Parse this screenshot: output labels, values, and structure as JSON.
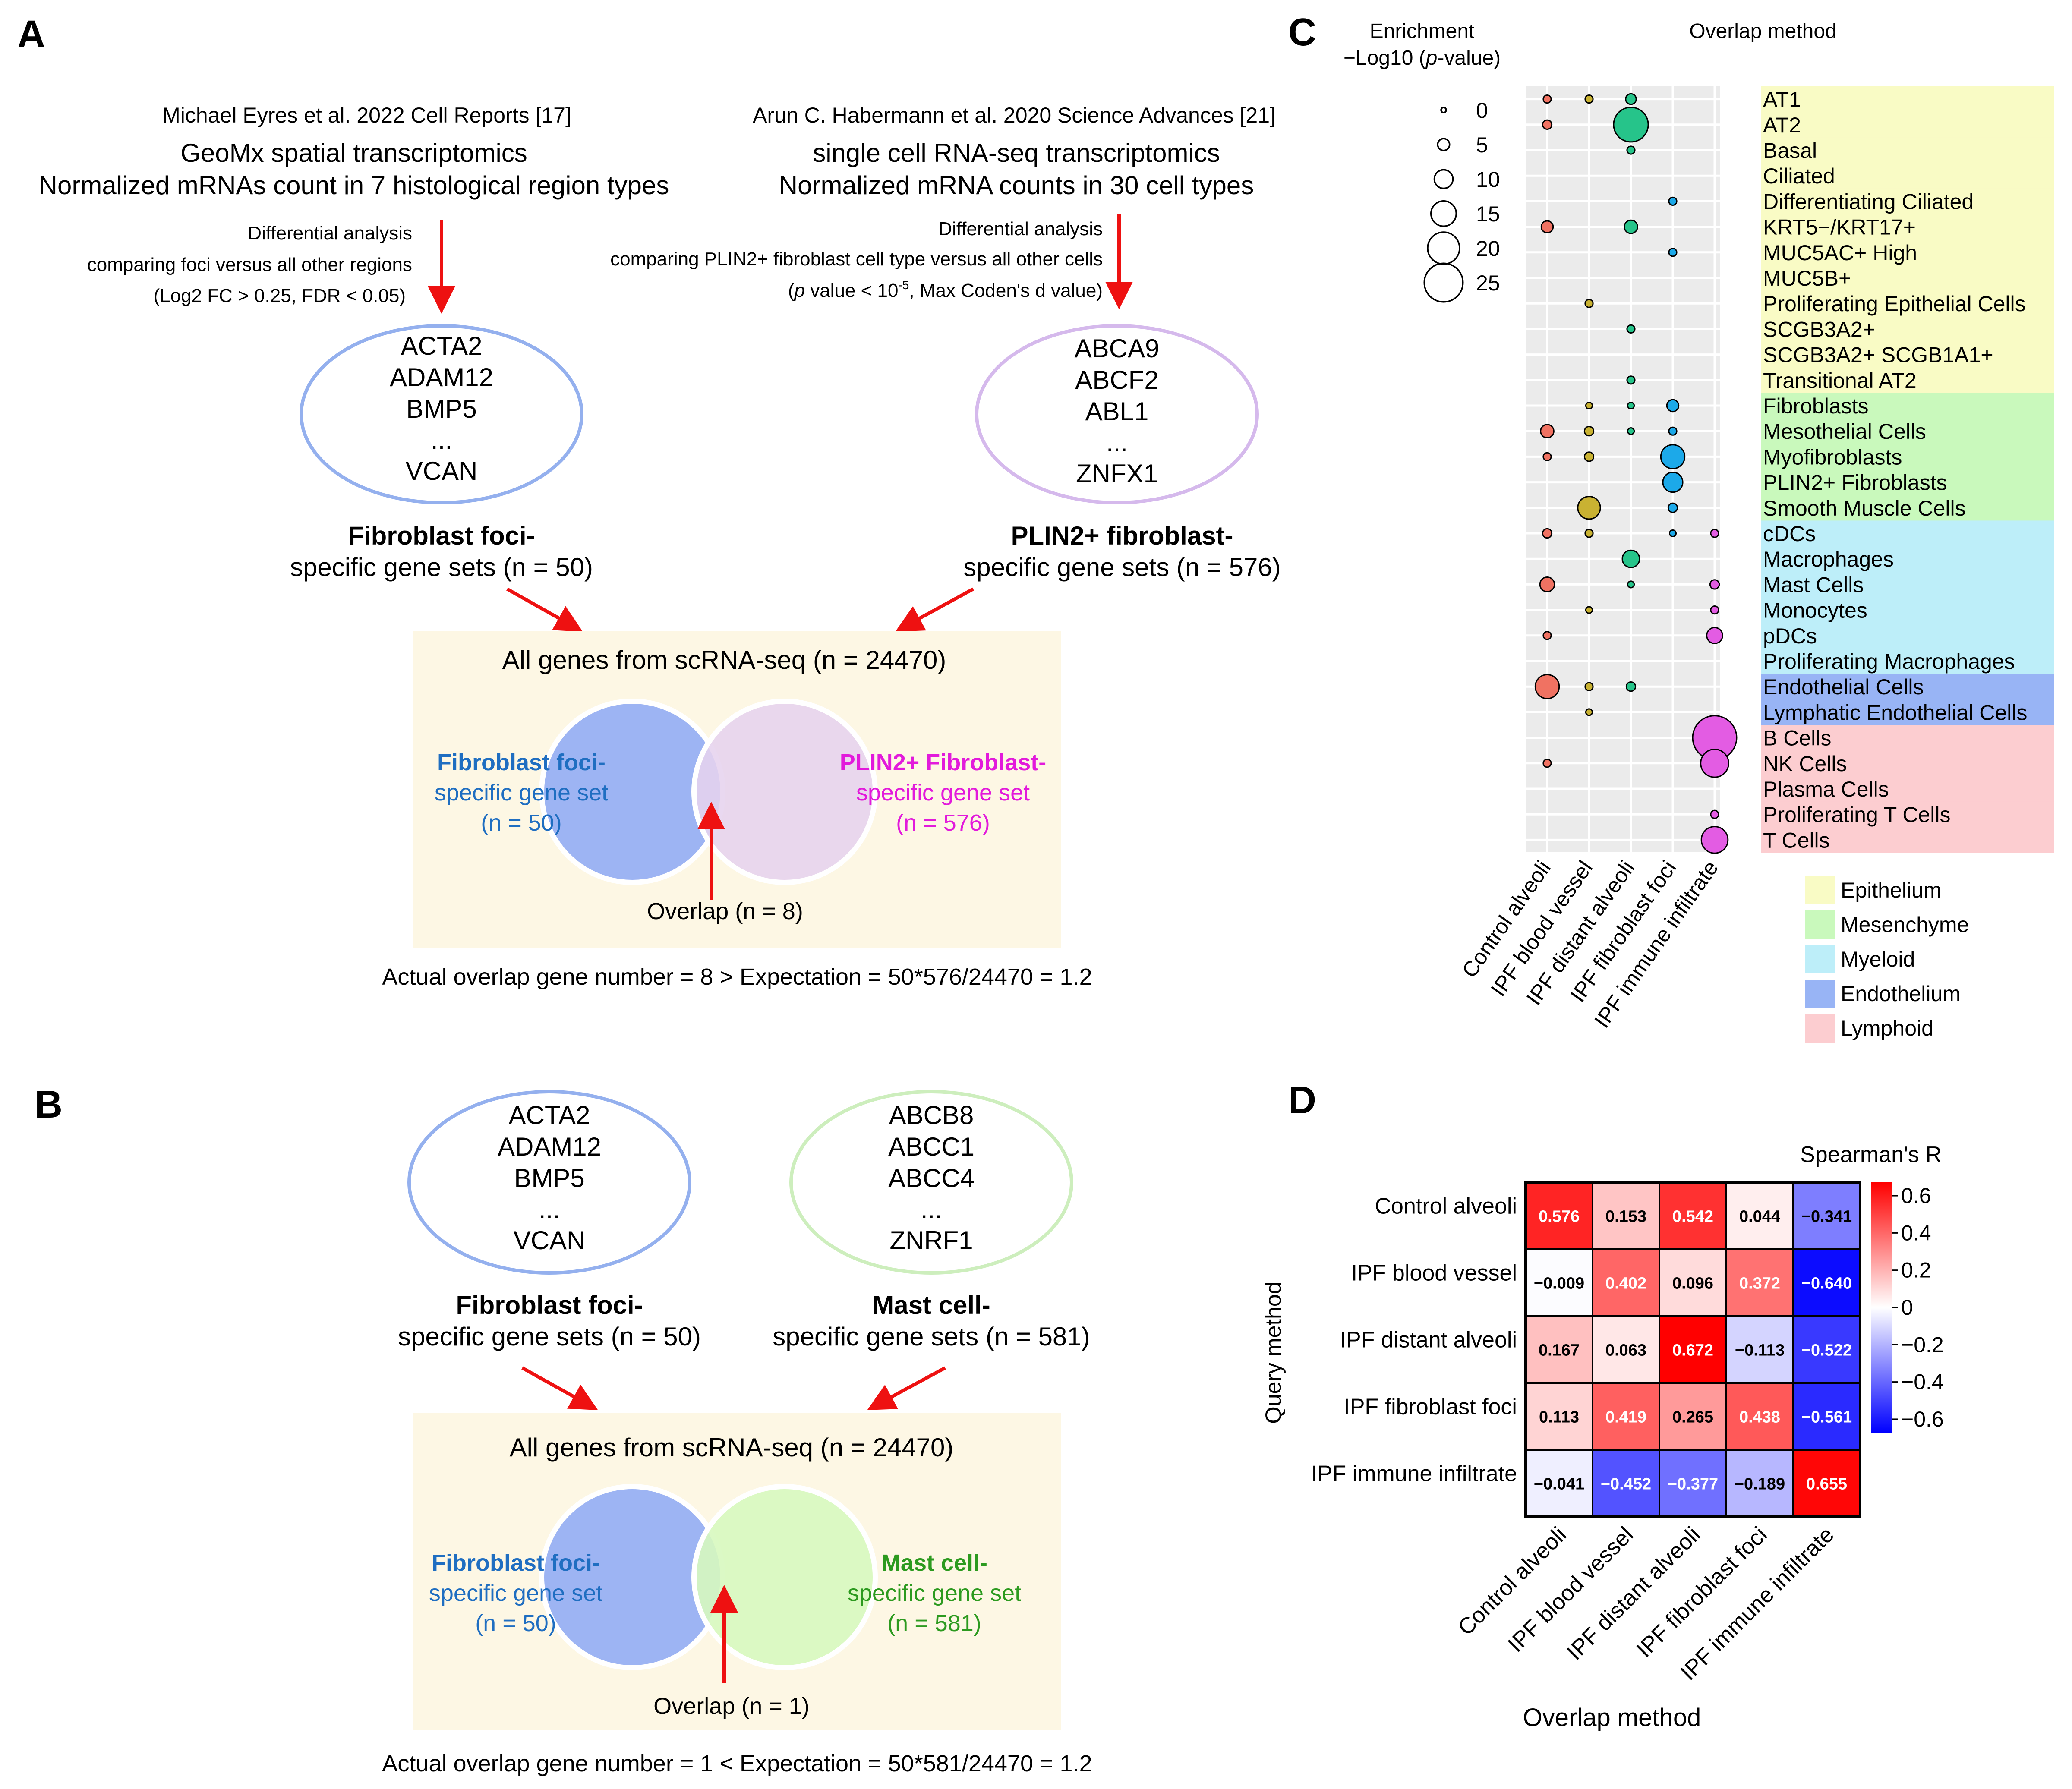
{
  "colors": {
    "arrow_red": "#ee1111",
    "venn_bg": "#fdf7e4",
    "foci_fill": "#9db4f3",
    "foci_outline": "#94b0ee",
    "plin2_fill": "#e6d3ee",
    "plin2_outline": "#d5b9ec",
    "mast_fill": "#d7f8bf",
    "mast_outline": "#cdeebd",
    "foci_text": "#1f6ec1",
    "plin2_text": "#e21adb",
    "mast_text": "#2c9a1f",
    "dot_grid_bg": "#ebebeb",
    "epithelium": "#f9fbc5",
    "mesenchyme": "#c9f9bc",
    "myeloid": "#bdeef9",
    "endothelium": "#98b4f5",
    "lymphoid": "#fccdd0"
  },
  "panel_a": {
    "letter": "A",
    "left_citation": "Michael Eyres et al. 2022 Cell Reports [17]",
    "left_method_1": "GeoMx spatial transcriptomics",
    "left_method_2": "Normalized mRNAs count in 7 histological region types",
    "left_diff_1": "Differential analysis",
    "left_diff_2": "comparing foci versus all other regions",
    "left_diff_3": "(Log2 FC > 0.25, FDR < 0.05)",
    "left_genes": [
      "ACTA2",
      "ADAM12",
      "BMP5",
      "...",
      "VCAN"
    ],
    "left_set_bold": "Fibroblast foci-",
    "left_set_sub": "specific gene sets (n = 50)",
    "right_citation": "Arun C. Habermann et al. 2020 Science Advances [21]",
    "right_method_1": "single cell RNA-seq transcriptomics",
    "right_method_2": "Normalized mRNA counts in 30 cell types",
    "right_diff_1": "Differential analysis",
    "right_diff_2": "comparing PLIN2+ fibroblast cell type versus all other cells",
    "right_diff_3_p": "p",
    "right_diff_3_a": " value < 10",
    "right_diff_3_exp": "-5",
    "right_diff_3_b": ", Max Coden's d value)",
    "right_genes": [
      "ABCA9",
      "ABCF2",
      "ABL1",
      "...",
      "ZNFX1"
    ],
    "right_set_bold": "PLIN2+ fibroblast-",
    "right_set_sub": "specific gene sets (n = 576)",
    "venn_title": "All genes from scRNA-seq (n = 24470)",
    "venn_left": [
      "Fibroblast foci-",
      "specific gene set",
      "(n = 50)"
    ],
    "venn_right": [
      "PLIN2+ Fibroblast-",
      "specific gene set",
      "(n = 576)"
    ],
    "overlap": "Overlap (n = 8)",
    "expectation": "Actual overlap gene number = 8 > Expectation = 50*576/24470 = 1.2"
  },
  "panel_b": {
    "letter": "B",
    "left_genes": [
      "ACTA2",
      "ADAM12",
      "BMP5",
      "...",
      "VCAN"
    ],
    "left_set_bold": "Fibroblast foci-",
    "left_set_sub": "specific gene sets (n = 50)",
    "right_genes": [
      "ABCB8",
      "ABCC1",
      "ABCC4",
      "...",
      "ZNRF1"
    ],
    "right_set_bold": "Mast cell-",
    "right_set_sub": "specific gene sets (n = 581)",
    "venn_title": "All genes from scRNA-seq (n = 24470)",
    "venn_left": [
      "Fibroblast foci-",
      "specific gene set",
      "(n = 50)"
    ],
    "venn_right": [
      "Mast cell-",
      "specific gene set",
      "(n = 581)"
    ],
    "overlap": "Overlap (n = 1)",
    "expectation": "Actual overlap gene number = 1 < Expectation = 50*581/24470 = 1.2"
  },
  "panel_c": {
    "letter": "C",
    "enrichment_title_1": "Enrichment",
    "enrichment_title_2a": "−Log10 (",
    "enrichment_title_2p": "p",
    "enrichment_title_2b": "-value)",
    "overlap_title": "Overlap method",
    "group_legend": [
      {
        "label": "Epithelium",
        "color": "#f9fbc5"
      },
      {
        "label": "Mesenchyme",
        "color": "#c9f9bc"
      },
      {
        "label": "Myeloid",
        "color": "#bdeef9"
      },
      {
        "label": "Endothelium",
        "color": "#98b4f5"
      },
      {
        "label": "Lymphoid",
        "color": "#fccdd0"
      }
    ]
  },
  "panel_d": {
    "letter": "D",
    "scale_title": "Spearman's R",
    "ylabel": "Query method",
    "xlabel": "Overlap method"
  },
  "chart_data": [
    {
      "type": "scatter",
      "subtype": "dot-plot",
      "title": "Overlap method",
      "size_label": "Enrichment −Log10 (p-value)",
      "size_legend": [
        0,
        5,
        10,
        15,
        20,
        25
      ],
      "x_categories": [
        "Control alveoli",
        "IPF blood vessel",
        "IPF distant alveoli",
        "IPF fibroblast foci",
        "IPF immune infiltrate"
      ],
      "series_colors": [
        "#f07262",
        "#c9b232",
        "#26c48a",
        "#1ca9e9",
        "#e35ce3"
      ],
      "cell_types": [
        {
          "label": "AT1",
          "group": "Epithelium"
        },
        {
          "label": "AT2",
          "group": "Epithelium"
        },
        {
          "label": "Basal",
          "group": "Epithelium"
        },
        {
          "label": "Ciliated",
          "group": "Epithelium"
        },
        {
          "label": "Differentiating Ciliated",
          "group": "Epithelium"
        },
        {
          "label": "KRT5−/KRT17+",
          "group": "Epithelium"
        },
        {
          "label": "MUC5AC+ High",
          "group": "Epithelium"
        },
        {
          "label": "MUC5B+",
          "group": "Epithelium"
        },
        {
          "label": "Proliferating Epithelial Cells",
          "group": "Epithelium"
        },
        {
          "label": "SCGB3A2+",
          "group": "Epithelium"
        },
        {
          "label": "SCGB3A2+ SCGB1A1+",
          "group": "Epithelium"
        },
        {
          "label": "Transitional AT2",
          "group": "Epithelium"
        },
        {
          "label": "Fibroblasts",
          "group": "Mesenchyme"
        },
        {
          "label": "Mesothelial Cells",
          "group": "Mesenchyme"
        },
        {
          "label": "Myofibroblasts",
          "group": "Mesenchyme"
        },
        {
          "label": "PLIN2+ Fibroblasts",
          "group": "Mesenchyme"
        },
        {
          "label": "Smooth Muscle Cells",
          "group": "Mesenchyme"
        },
        {
          "label": "cDCs",
          "group": "Myeloid"
        },
        {
          "label": "Macrophages",
          "group": "Myeloid"
        },
        {
          "label": "Mast Cells",
          "group": "Myeloid"
        },
        {
          "label": "Monocytes",
          "group": "Myeloid"
        },
        {
          "label": "pDCs",
          "group": "Myeloid"
        },
        {
          "label": "Proliferating Macrophages",
          "group": "Myeloid"
        },
        {
          "label": "Endothelial Cells",
          "group": "Endothelium"
        },
        {
          "label": "Lymphatic Endothelial Cells",
          "group": "Endothelium"
        },
        {
          "label": "B Cells",
          "group": "Lymphoid"
        },
        {
          "label": "NK Cells",
          "group": "Lymphoid"
        },
        {
          "label": "Plasma Cells",
          "group": "Lymphoid"
        },
        {
          "label": "Proliferating T Cells",
          "group": "Lymphoid"
        },
        {
          "label": "T Cells",
          "group": "Lymphoid"
        }
      ],
      "points": [
        {
          "cell": "AT1",
          "method": "Control alveoli",
          "value": 2
        },
        {
          "cell": "AT1",
          "method": "IPF blood vessel",
          "value": 2
        },
        {
          "cell": "AT1",
          "method": "IPF distant alveoli",
          "value": 4
        },
        {
          "cell": "AT2",
          "method": "Control alveoli",
          "value": 3
        },
        {
          "cell": "AT2",
          "method": "IPF distant alveoli",
          "value": 22
        },
        {
          "cell": "Basal",
          "method": "IPF distant alveoli",
          "value": 2
        },
        {
          "cell": "Differentiating Ciliated",
          "method": "IPF fibroblast foci",
          "value": 2
        },
        {
          "cell": "KRT5−/KRT17+",
          "method": "Control alveoli",
          "value": 5
        },
        {
          "cell": "KRT5−/KRT17+",
          "method": "IPF distant alveoli",
          "value": 6
        },
        {
          "cell": "MUC5AC+ High",
          "method": "IPF fibroblast foci",
          "value": 2
        },
        {
          "cell": "Proliferating Epithelial Cells",
          "method": "IPF blood vessel",
          "value": 2
        },
        {
          "cell": "SCGB3A2+",
          "method": "IPF distant alveoli",
          "value": 2
        },
        {
          "cell": "Transitional AT2",
          "method": "IPF distant alveoli",
          "value": 2
        },
        {
          "cell": "Fibroblasts",
          "method": "IPF blood vessel",
          "value": 1
        },
        {
          "cell": "Fibroblasts",
          "method": "IPF distant alveoli",
          "value": 1
        },
        {
          "cell": "Fibroblasts",
          "method": "IPF fibroblast foci",
          "value": 5
        },
        {
          "cell": "Mesothelial Cells",
          "method": "Control alveoli",
          "value": 6
        },
        {
          "cell": "Mesothelial Cells",
          "method": "IPF blood vessel",
          "value": 3
        },
        {
          "cell": "Mesothelial Cells",
          "method": "IPF distant alveoli",
          "value": 1
        },
        {
          "cell": "Mesothelial Cells",
          "method": "IPF fibroblast foci",
          "value": 2
        },
        {
          "cell": "Myofibroblasts",
          "method": "Control alveoli",
          "value": 2
        },
        {
          "cell": "Myofibroblasts",
          "method": "IPF blood vessel",
          "value": 3
        },
        {
          "cell": "Myofibroblasts",
          "method": "IPF fibroblast foci",
          "value": 14
        },
        {
          "cell": "PLIN2+ Fibroblasts",
          "method": "IPF fibroblast foci",
          "value": 11
        },
        {
          "cell": "Smooth Muscle Cells",
          "method": "IPF blood vessel",
          "value": 13
        },
        {
          "cell": "Smooth Muscle Cells",
          "method": "IPF fibroblast foci",
          "value": 3
        },
        {
          "cell": "cDCs",
          "method": "Control alveoli",
          "value": 3
        },
        {
          "cell": "cDCs",
          "method": "IPF blood vessel",
          "value": 2
        },
        {
          "cell": "cDCs",
          "method": "IPF fibroblast foci",
          "value": 1
        },
        {
          "cell": "cDCs",
          "method": "IPF immune infiltrate",
          "value": 2
        },
        {
          "cell": "Macrophages",
          "method": "IPF distant alveoli",
          "value": 9
        },
        {
          "cell": "Mast Cells",
          "method": "Control alveoli",
          "value": 7
        },
        {
          "cell": "Mast Cells",
          "method": "IPF distant alveoli",
          "value": 1
        },
        {
          "cell": "Mast Cells",
          "method": "IPF immune infiltrate",
          "value": 3
        },
        {
          "cell": "Monocytes",
          "method": "IPF blood vessel",
          "value": 1
        },
        {
          "cell": "Monocytes",
          "method": "IPF immune infiltrate",
          "value": 2
        },
        {
          "cell": "pDCs",
          "method": "Control alveoli",
          "value": 2
        },
        {
          "cell": "pDCs",
          "method": "IPF immune infiltrate",
          "value": 8
        },
        {
          "cell": "Endothelial Cells",
          "method": "Control alveoli",
          "value": 14
        },
        {
          "cell": "Endothelial Cells",
          "method": "IPF blood vessel",
          "value": 2
        },
        {
          "cell": "Endothelial Cells",
          "method": "IPF distant alveoli",
          "value": 3
        },
        {
          "cell": "Lymphatic Endothelial Cells",
          "method": "IPF blood vessel",
          "value": 1
        },
        {
          "cell": "B Cells",
          "method": "IPF immune infiltrate",
          "value": 29
        },
        {
          "cell": "NK Cells",
          "method": "Control alveoli",
          "value": 2
        },
        {
          "cell": "NK Cells",
          "method": "IPF immune infiltrate",
          "value": 17
        },
        {
          "cell": "Proliferating T Cells",
          "method": "IPF immune infiltrate",
          "value": 2
        },
        {
          "cell": "T Cells",
          "method": "IPF immune infiltrate",
          "value": 16
        }
      ]
    },
    {
      "type": "heatmap",
      "title": "Spearman's R",
      "xlabel": "Overlap method",
      "ylabel": "Query method",
      "x_categories": [
        "Control alveoli",
        "IPF blood vessel",
        "IPF distant alveoli",
        "IPF fibroblast foci",
        "IPF immune infiltrate"
      ],
      "y_categories": [
        "Control alveoli",
        "IPF blood vessel",
        "IPF distant alveoli",
        "IPF fibroblast foci",
        "IPF immune infiltrate"
      ],
      "values": [
        [
          0.576,
          0.153,
          0.542,
          0.044,
          -0.341
        ],
        [
          -0.009,
          0.402,
          0.096,
          0.372,
          -0.64
        ],
        [
          0.167,
          0.063,
          0.672,
          -0.113,
          -0.522
        ],
        [
          0.113,
          0.419,
          0.265,
          0.438,
          -0.561
        ],
        [
          -0.041,
          -0.452,
          -0.377,
          -0.189,
          0.655
        ]
      ],
      "value_labels": [
        [
          "0.576",
          "0.153",
          "0.542",
          "0.044",
          "−0.341"
        ],
        [
          "−0.009",
          "0.402",
          "0.096",
          "0.372",
          "−0.640"
        ],
        [
          "0.167",
          "0.063",
          "0.672",
          "−0.113",
          "−0.522"
        ],
        [
          "0.113",
          "0.419",
          "0.265",
          "0.438",
          "−0.561"
        ],
        [
          "−0.041",
          "−0.452",
          "−0.377",
          "−0.189",
          "0.655"
        ]
      ],
      "color_range": [
        -0.672,
        0.672
      ],
      "colorbar_ticks": [
        {
          "value": 0.6,
          "label": "0.6"
        },
        {
          "value": 0.4,
          "label": "0.4"
        },
        {
          "value": 0.2,
          "label": "0.2"
        },
        {
          "value": 0,
          "label": "0"
        },
        {
          "value": -0.2,
          "label": "−0.2"
        },
        {
          "value": -0.4,
          "label": "−0.4"
        },
        {
          "value": -0.6,
          "label": "−0.6"
        }
      ]
    }
  ]
}
